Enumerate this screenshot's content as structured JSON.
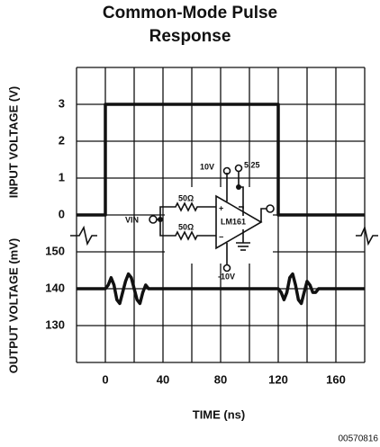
{
  "chart_data": [
    {
      "type": "line",
      "title": "Common-Mode Pulse Response",
      "xlabel": "TIME (ns)",
      "ylabel": "INPUT VOLTAGE (V)",
      "xlim": [
        -20,
        180
      ],
      "xticks": [
        0,
        40,
        80,
        120,
        160
      ],
      "xgrid": [
        -20,
        0,
        20,
        40,
        60,
        80,
        100,
        120,
        140,
        160,
        180
      ],
      "ylim": [
        0,
        4
      ],
      "yticks": [
        0,
        1,
        2,
        3
      ],
      "ygrid": [
        0,
        1,
        2,
        3,
        4
      ],
      "color": "#111111",
      "x": [
        -20,
        0,
        0,
        120,
        120,
        180
      ],
      "values": [
        0,
        0,
        3,
        3,
        0,
        0
      ]
    },
    {
      "type": "line",
      "ylabel": "OUTPUT VOLTAGE (mV)",
      "xlim": [
        -20,
        180
      ],
      "ylim": [
        120,
        160
      ],
      "yticks": [
        130,
        140,
        150
      ],
      "ygrid": [
        120,
        130,
        140,
        150
      ],
      "color": "#111111",
      "x": [
        -20,
        0,
        2,
        4,
        6,
        8,
        10,
        12,
        14,
        16,
        18,
        20,
        22,
        24,
        26,
        28,
        30,
        40,
        120,
        122,
        124,
        126,
        128,
        130,
        132,
        134,
        136,
        138,
        140,
        142,
        144,
        146,
        148,
        150,
        160,
        180
      ],
      "values": [
        140,
        140,
        141,
        143,
        141,
        137,
        136,
        139,
        142,
        144,
        143,
        140,
        137,
        136,
        139,
        141,
        140,
        140,
        140,
        139,
        137,
        139,
        143,
        144,
        141,
        137,
        136,
        139,
        142,
        141,
        139,
        139,
        140,
        140,
        140,
        140
      ]
    }
  ],
  "circuit": {
    "labels": [
      "10V",
      "5.25",
      "VIN",
      "50Ω",
      "50Ω",
      "LM161",
      "-10V",
      "+",
      "−"
    ]
  },
  "footer": "00570816"
}
